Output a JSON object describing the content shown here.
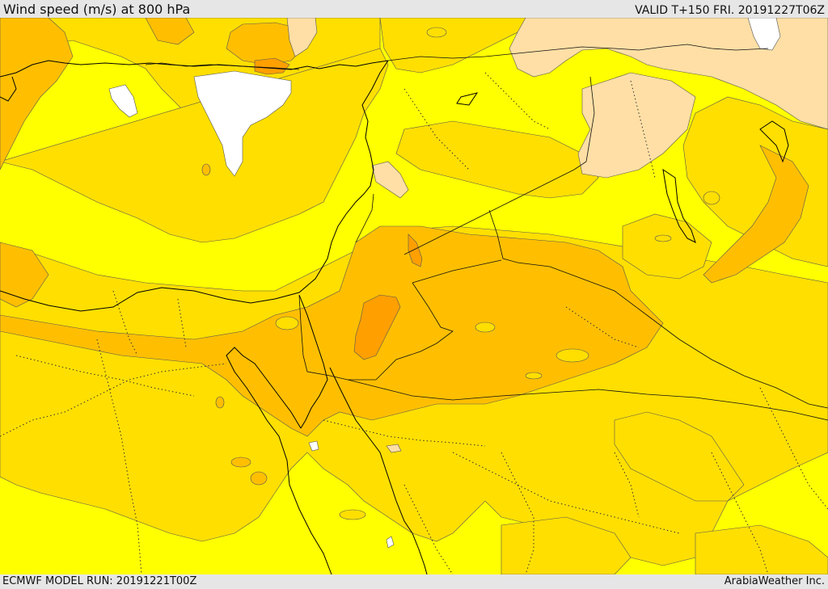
{
  "header": {
    "title": "Wind speed (m/s) at 800 hPa",
    "valid": "VALID T+150 FRI. 20191227T06Z"
  },
  "footer": {
    "model_run": "ECMWF MODEL RUN: 20191221T00Z",
    "credit": "ArabiaWeather Inc."
  },
  "map": {
    "variable": "wind speed",
    "units": "m/s",
    "level": "800 hPa",
    "region": "Eastern Mediterranean, Levant, Arabian Peninsula",
    "fill_colors": {
      "white": "#ffffff",
      "peach": "#ffdfa5",
      "yellow": "#ffff00",
      "gold": "#ffdf00",
      "light_orange": "#ffbf00",
      "orange": "#ff9f00"
    }
  }
}
